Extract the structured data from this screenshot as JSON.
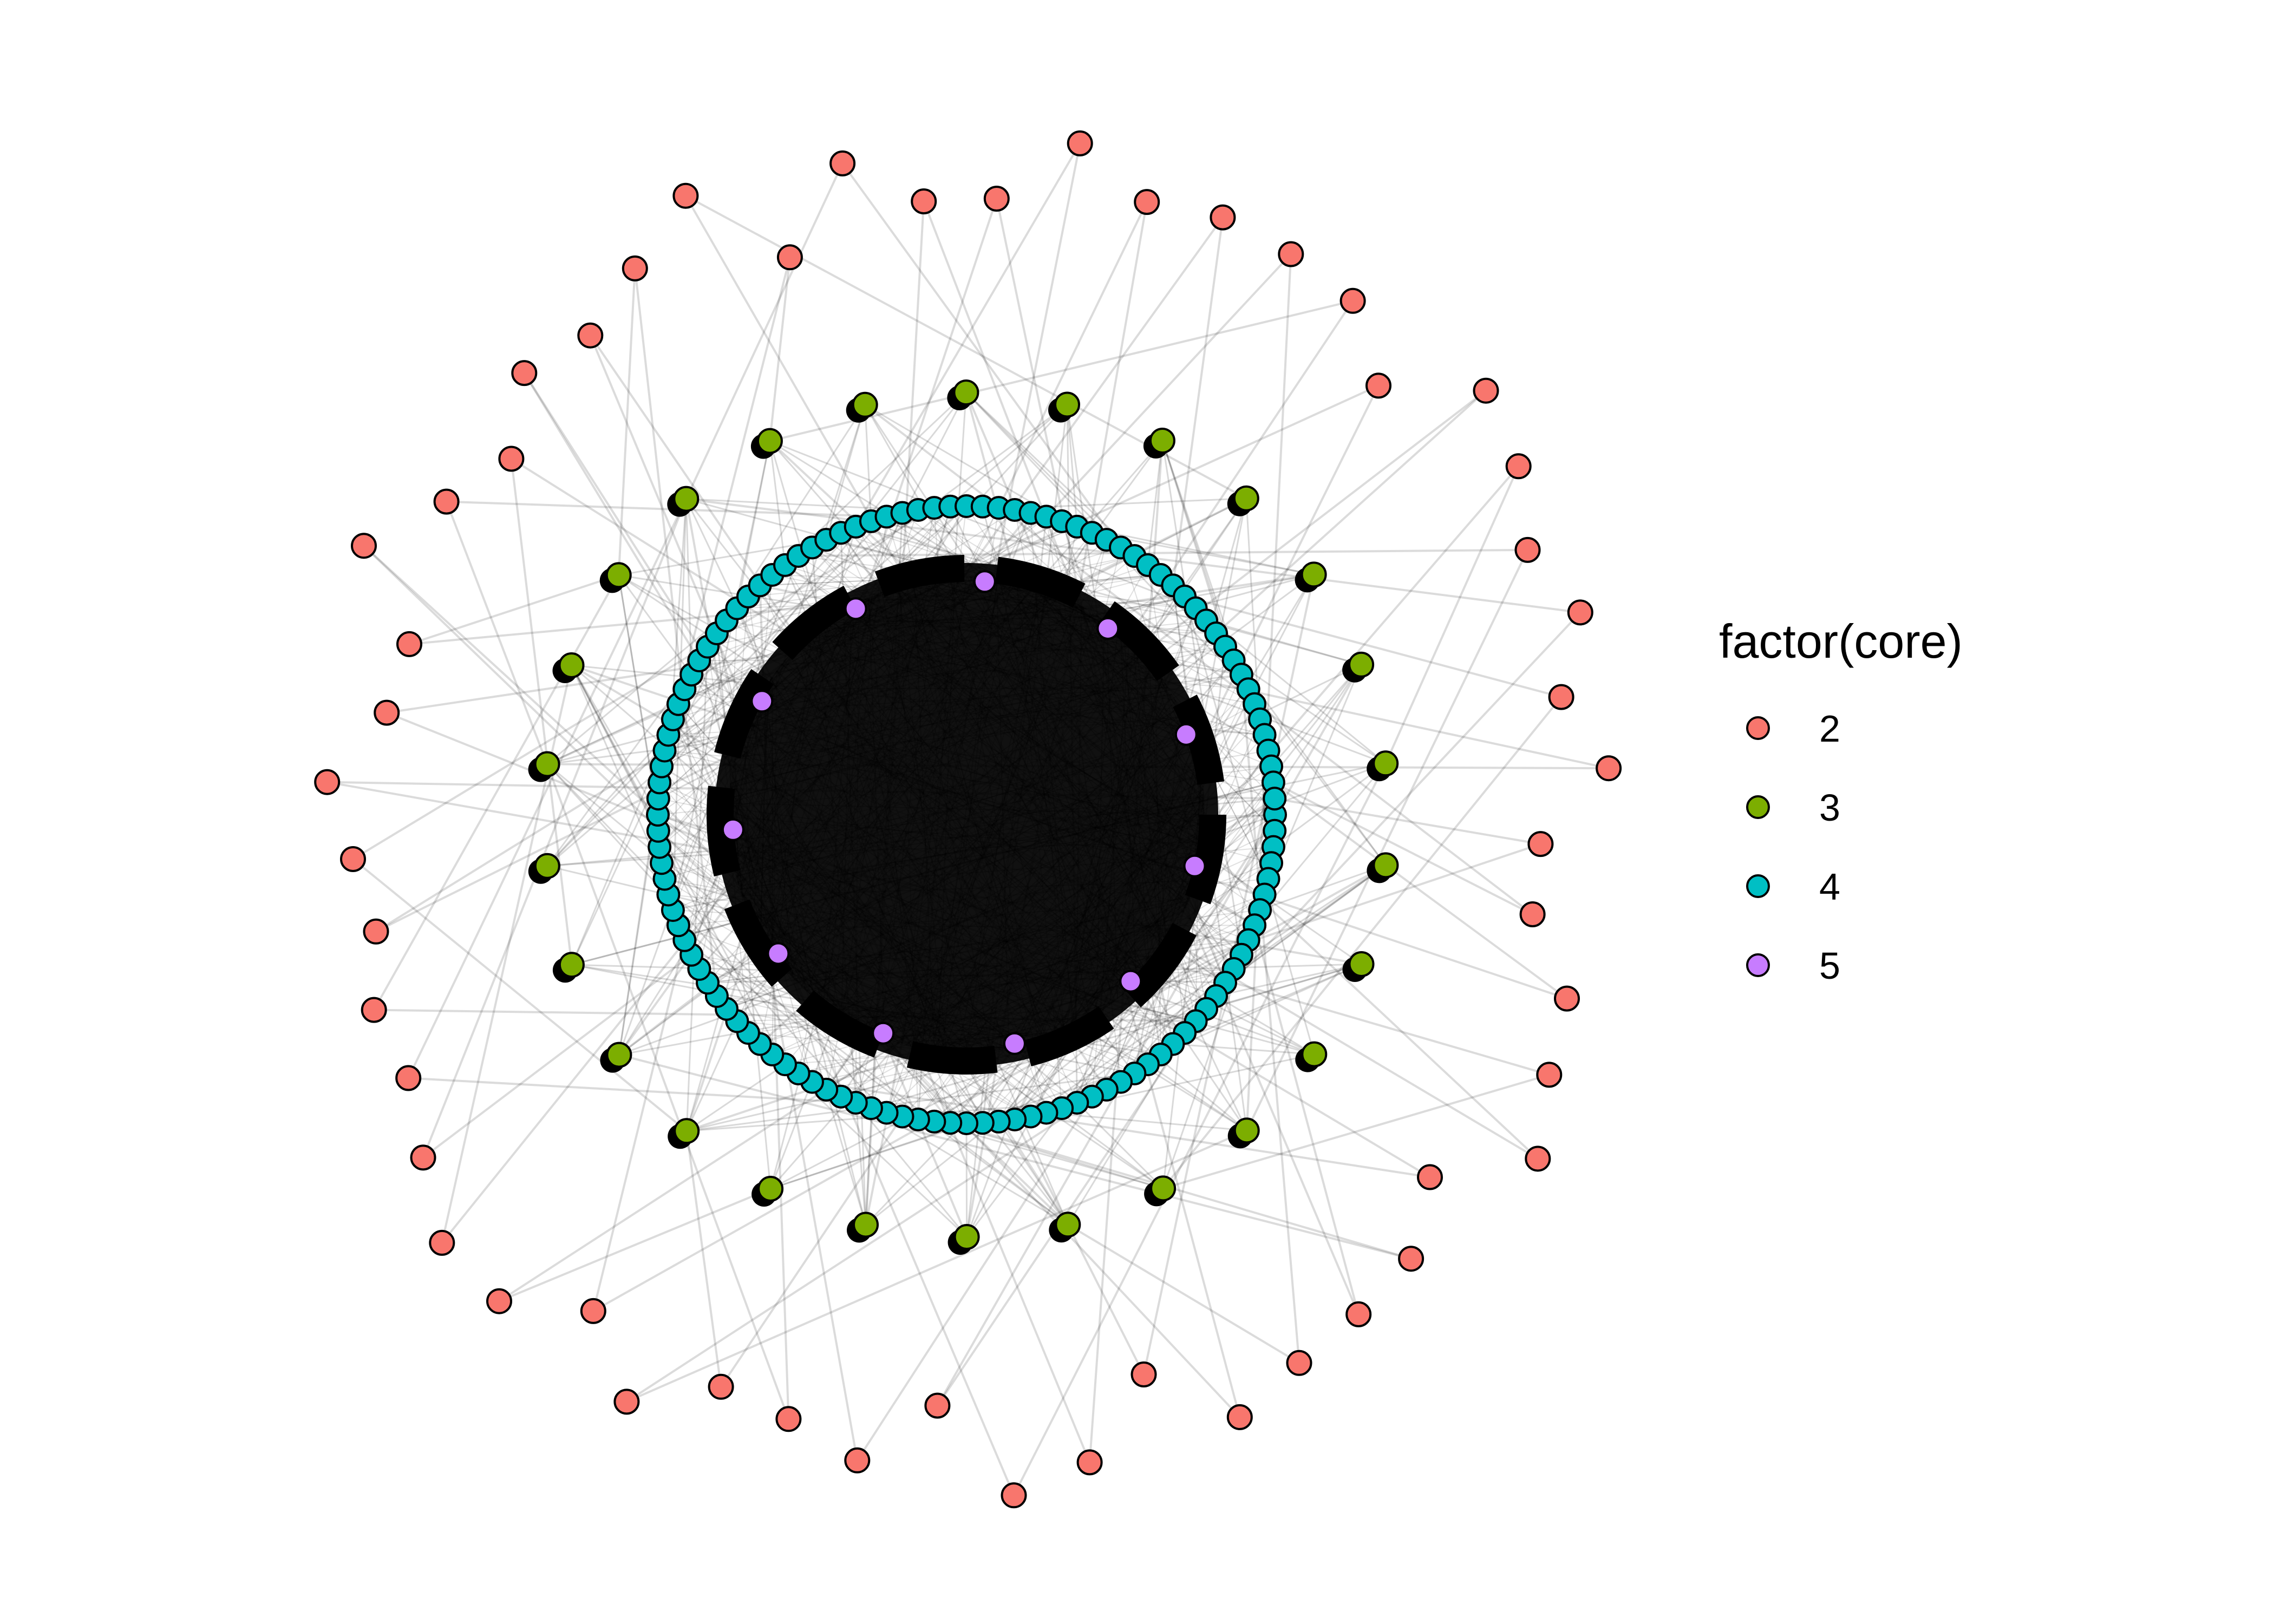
{
  "legend": {
    "title": "factor(core)",
    "items": [
      {
        "label": "2",
        "color": "#F8766D"
      },
      {
        "label": "3",
        "color": "#7CAE00"
      },
      {
        "label": "4",
        "color": "#00BFC4"
      },
      {
        "label": "5",
        "color": "#C77CFF"
      }
    ]
  },
  "network": {
    "layout": "concentric",
    "edge_color": "#000000",
    "node_outline": "#000000",
    "shells": [
      {
        "core": "2",
        "node_count": 52
      },
      {
        "core": "3",
        "node_count": 26
      },
      {
        "core": "4",
        "node_count": 120
      },
      {
        "core": "5",
        "node_count": 11
      }
    ]
  }
}
